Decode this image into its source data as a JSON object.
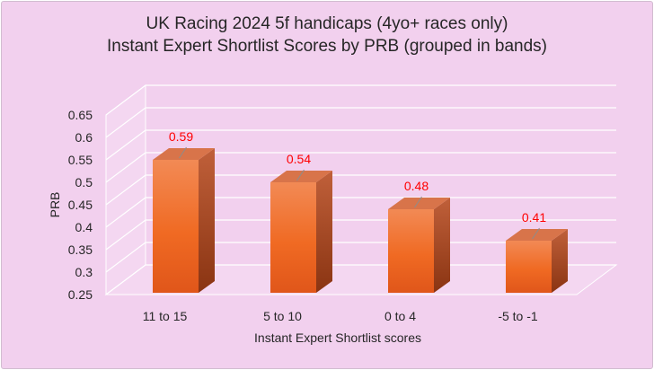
{
  "chart_data": {
    "type": "bar",
    "title_lines": [
      "UK Racing 2024 5f handicaps (4yo+ races only)",
      "Instant Expert Shortlist Scores by PRB (grouped in bands)"
    ],
    "xlabel": "Instant Expert Shortlist scores",
    "ylabel": "PRB",
    "categories": [
      "11 to 15",
      "5 to 10",
      "0 to 4",
      "-5 to -1"
    ],
    "values": [
      0.59,
      0.54,
      0.48,
      0.41
    ],
    "data_labels": [
      "0.59",
      "0.54",
      "0.48",
      "0.41"
    ],
    "ylim": [
      0.25,
      0.65
    ],
    "yticks": [
      "0.25",
      "0.3",
      "0.35",
      "0.4",
      "0.45",
      "0.5",
      "0.55",
      "0.6",
      "0.65"
    ],
    "grid": true,
    "bar_color": "#f06a23",
    "label_color": "#ff0000"
  }
}
